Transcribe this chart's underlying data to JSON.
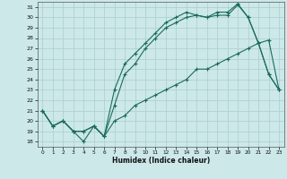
{
  "xlabel": "Humidex (Indice chaleur)",
  "background_color": "#cce8e8",
  "grid_color": "#aacece",
  "line_color": "#1a6b5a",
  "xlim": [
    -0.5,
    23.5
  ],
  "ylim": [
    17.5,
    31.5
  ],
  "xticks": [
    0,
    1,
    2,
    3,
    4,
    5,
    6,
    7,
    8,
    9,
    10,
    11,
    12,
    13,
    14,
    15,
    16,
    17,
    18,
    19,
    20,
    21,
    22,
    23
  ],
  "yticks": [
    18,
    19,
    20,
    21,
    22,
    23,
    24,
    25,
    26,
    27,
    28,
    29,
    30,
    31
  ],
  "line1_x": [
    0,
    1,
    2,
    3,
    4,
    5,
    6,
    7,
    8,
    9,
    10,
    11,
    12,
    13,
    14,
    15,
    16,
    17,
    18,
    19,
    20,
    21,
    22,
    23
  ],
  "line1_y": [
    21,
    19.5,
    20.0,
    19.0,
    18.0,
    19.5,
    18.5,
    20.0,
    20.5,
    21.5,
    22.0,
    22.5,
    23.0,
    23.5,
    24.0,
    25.0,
    25.0,
    25.5,
    26.0,
    26.5,
    27.0,
    27.5,
    27.8,
    23.0
  ],
  "line2_x": [
    0,
    1,
    2,
    3,
    4,
    5,
    6,
    7,
    8,
    9,
    10,
    11,
    12,
    13,
    14,
    15,
    16,
    17,
    18,
    19,
    20,
    21,
    22,
    23
  ],
  "line2_y": [
    21,
    19.5,
    20.0,
    19.0,
    19.0,
    19.5,
    18.5,
    21.5,
    24.5,
    25.5,
    27.0,
    28.0,
    29.0,
    29.5,
    30.0,
    30.2,
    30.0,
    30.2,
    30.2,
    31.2,
    30.0,
    27.5,
    24.5,
    23.0
  ],
  "line3_x": [
    0,
    1,
    2,
    3,
    4,
    5,
    6,
    7,
    8,
    9,
    10,
    11,
    12,
    13,
    14,
    15,
    16,
    17,
    18,
    19,
    20,
    21,
    22,
    23
  ],
  "line3_y": [
    21,
    19.5,
    20.0,
    19.0,
    19.0,
    19.5,
    18.5,
    23.0,
    25.5,
    26.5,
    27.5,
    28.5,
    29.5,
    30.0,
    30.5,
    30.2,
    30.0,
    30.5,
    30.5,
    31.3,
    30.0,
    27.5,
    24.5,
    23.0
  ]
}
